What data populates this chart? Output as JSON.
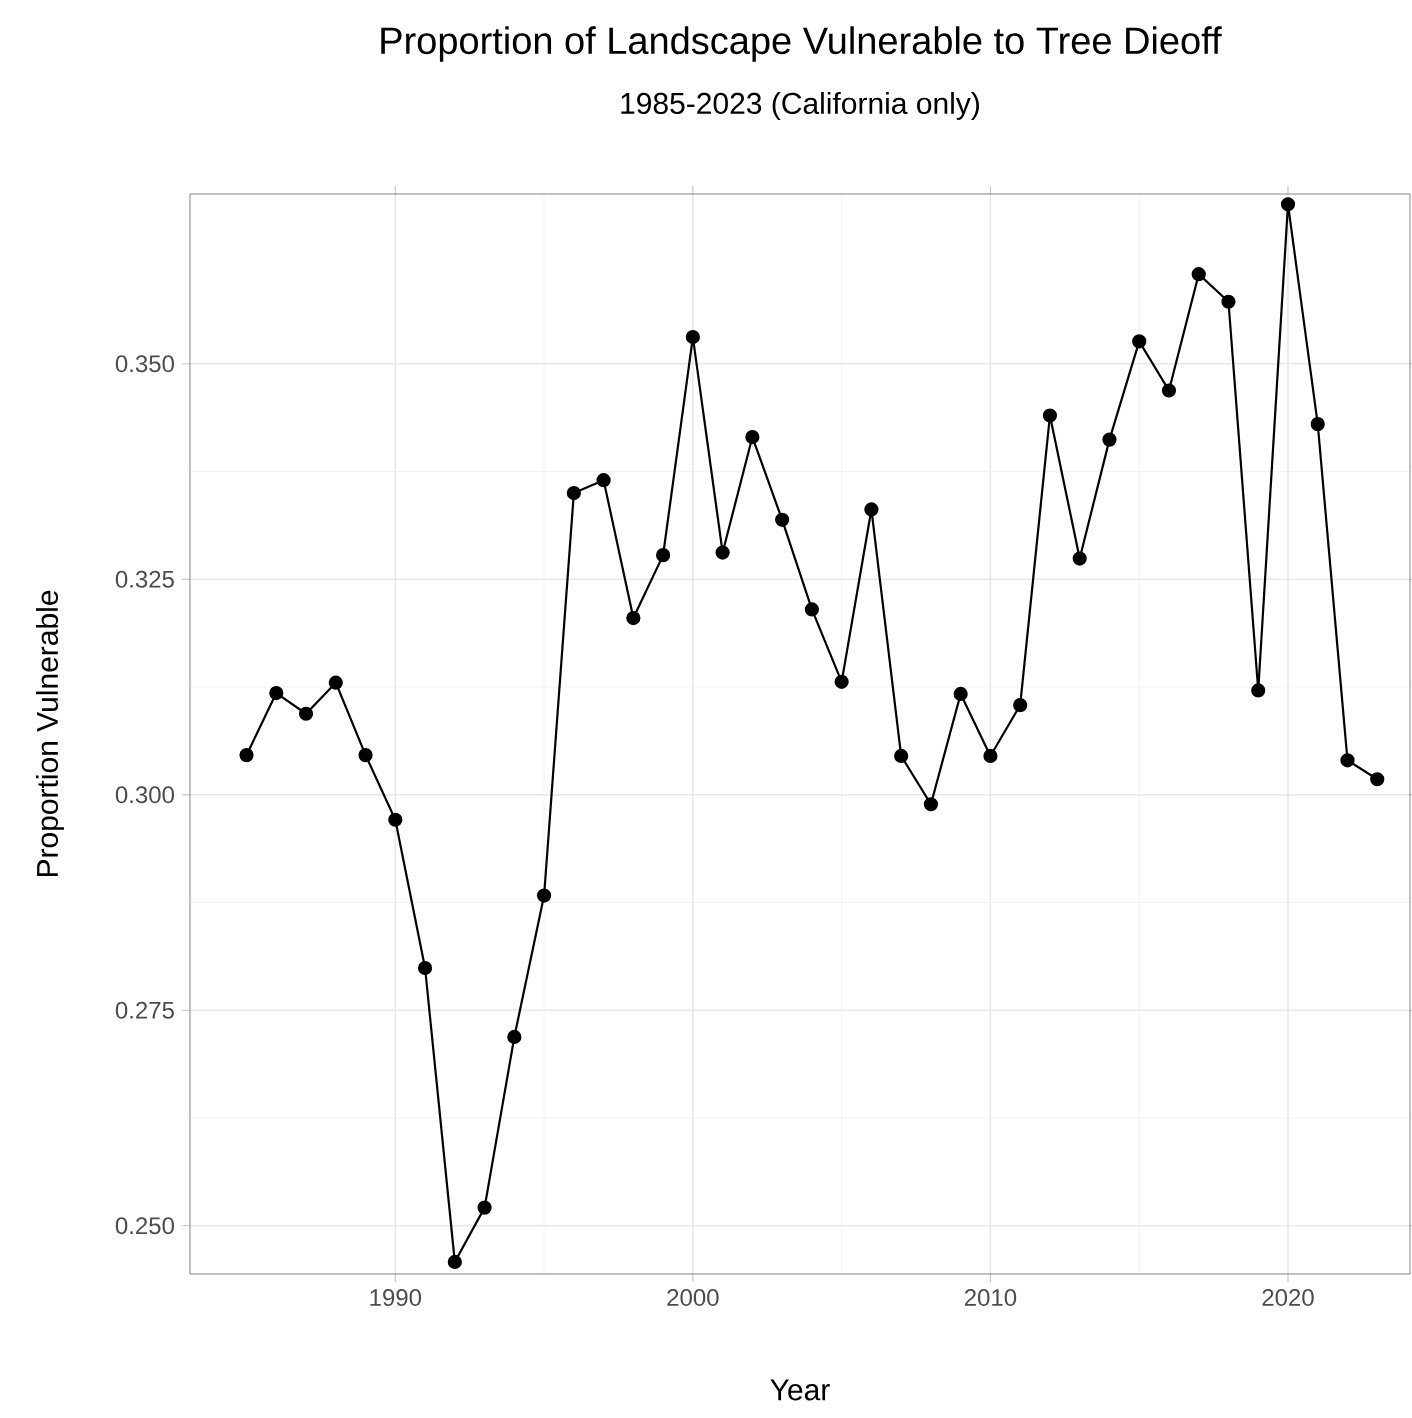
{
  "chart_data": {
    "type": "line",
    "title": "Proportion of Landscape Vulnerable to Tree Dieoff",
    "subtitle": "1985-2023 (California only)",
    "xlabel": "Year",
    "ylabel": "Proportion Vulnerable",
    "x": [
      1985,
      1986,
      1987,
      1988,
      1989,
      1990,
      1991,
      1992,
      1993,
      1994,
      1995,
      1996,
      1997,
      1998,
      1999,
      2000,
      2001,
      2002,
      2003,
      2004,
      2005,
      2006,
      2007,
      2008,
      2009,
      2010,
      2011,
      2012,
      2013,
      2014,
      2015,
      2016,
      2017,
      2018,
      2019,
      2020,
      2021,
      2022,
      2023
    ],
    "series": [
      {
        "color": "#000000",
        "values": [
          0.3046,
          0.3118,
          0.3094,
          0.313,
          0.3046,
          0.2971,
          0.2799,
          0.2458,
          0.2521,
          0.2719,
          0.2883,
          0.335,
          0.3365,
          0.3205,
          0.3278,
          0.3531,
          0.3281,
          0.3415,
          0.3319,
          0.3215,
          0.3131,
          0.3331,
          0.3045,
          0.2989,
          0.3117,
          0.3045,
          0.3104,
          0.344,
          0.3274,
          0.3412,
          0.3526,
          0.3469,
          0.3604,
          0.3572,
          0.3121,
          0.3685,
          0.343,
          0.304,
          0.3018
        ]
      }
    ],
    "xlim": [
      1983.1,
      2024.1
    ],
    "ylim": [
      0.2444,
      0.3697
    ],
    "xticks": [
      1990,
      2000,
      2010,
      2020
    ],
    "yticks": [
      {
        "value": 0.25,
        "label": "0.250"
      },
      {
        "value": 0.275,
        "label": "0.275"
      },
      {
        "value": 0.3,
        "label": "0.300"
      },
      {
        "value": 0.325,
        "label": "0.325"
      },
      {
        "value": 0.35,
        "label": "0.350"
      }
    ],
    "grid": true,
    "marker": "circle",
    "line_style": "solid"
  }
}
